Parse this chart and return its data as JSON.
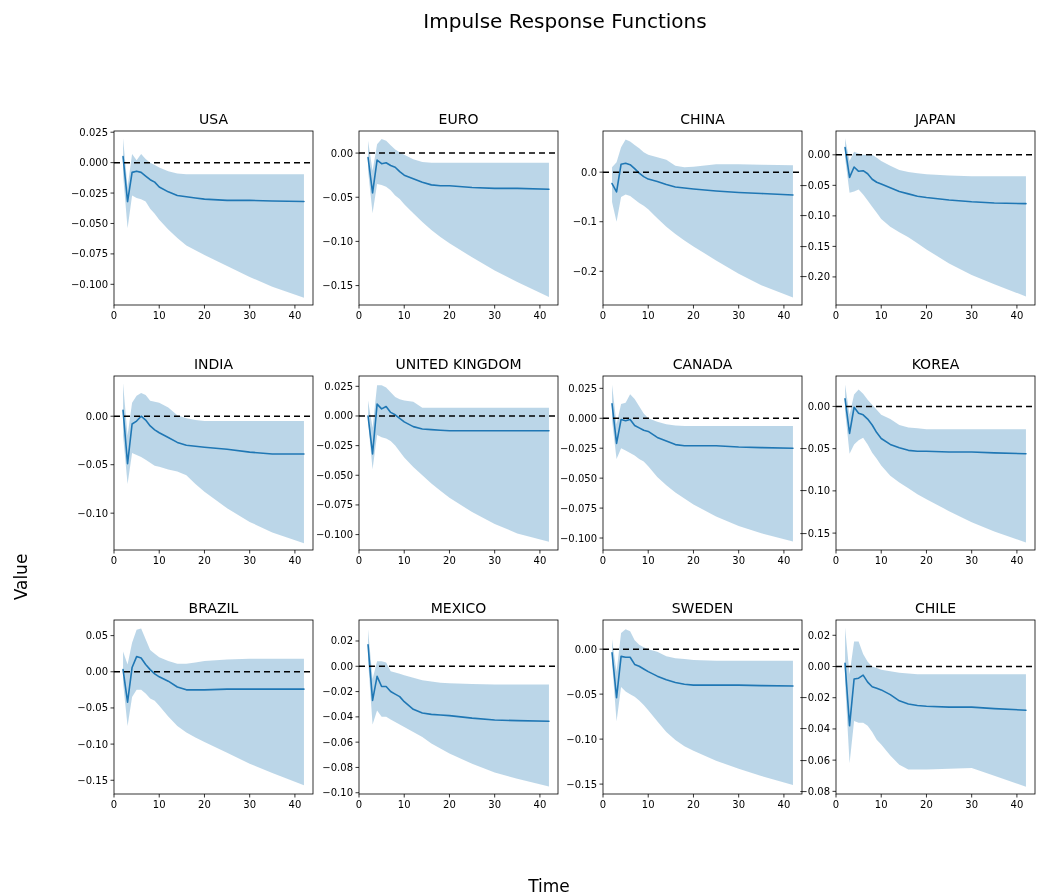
{
  "chart_data": [
    {
      "type": "line",
      "title": "USA",
      "annotations": [
        "Impulse Response Functions"
      ],
      "x": [
        2,
        3,
        4,
        5,
        6,
        7,
        8,
        9,
        10,
        12,
        14,
        16,
        18,
        20,
        25,
        30,
        35,
        42
      ],
      "xlim": [
        0,
        44
      ],
      "xticks": [
        0,
        10,
        20,
        30,
        40
      ],
      "ylim": [
        -0.117,
        0.026
      ],
      "yticks": [
        {
          "value": -0.1,
          "label": "−0.100"
        },
        {
          "value": -0.075,
          "label": "−0.075"
        },
        {
          "value": -0.05,
          "label": "−0.050"
        },
        {
          "value": -0.025,
          "label": "−0.025"
        },
        {
          "value": 0,
          "label": "0.000"
        },
        {
          "value": 0.025,
          "label": "0.025"
        }
      ],
      "ref_lines": [
        {
          "axis": "y",
          "value": 0,
          "color": "#000000",
          "line_style": "dashed"
        }
      ],
      "series": [
        {
          "color": "#1f77b4",
          "values": [
            0.005,
            -0.032,
            -0.008,
            -0.007,
            -0.008,
            -0.011,
            -0.014,
            -0.016,
            -0.02,
            -0.024,
            -0.027,
            -0.028,
            -0.029,
            -0.03,
            -0.031,
            -0.031,
            -0.0315,
            -0.032
          ],
          "upper": [
            0.02,
            -0.02,
            0.007,
            0.002,
            0.007,
            0.003,
            0,
            -0.002,
            -0.004,
            -0.007,
            -0.009,
            -0.0095,
            -0.0095,
            -0.0095,
            -0.0095,
            -0.0095,
            -0.0095,
            -0.0095
          ],
          "lower": [
            -0.01,
            -0.054,
            -0.027,
            -0.029,
            -0.03,
            -0.032,
            -0.038,
            -0.042,
            -0.047,
            -0.055,
            -0.062,
            -0.068,
            -0.072,
            -0.076,
            -0.085,
            -0.094,
            -0.102,
            -0.111
          ]
        }
      ]
    },
    {
      "type": "line",
      "title": "EURO",
      "x": [
        2,
        3,
        4,
        5,
        6,
        7,
        8,
        9,
        10,
        12,
        14,
        16,
        18,
        20,
        25,
        30,
        35,
        42
      ],
      "xlim": [
        0,
        44
      ],
      "xticks": [
        0,
        10,
        20,
        30,
        40
      ],
      "ylim": [
        -0.172,
        0.025
      ],
      "yticks": [
        {
          "value": -0.15,
          "label": "−0.15"
        },
        {
          "value": -0.1,
          "label": "−0.10"
        },
        {
          "value": -0.05,
          "label": "−0.05"
        },
        {
          "value": 0,
          "label": "0.00"
        }
      ],
      "ref_lines": [
        {
          "axis": "y",
          "value": 0,
          "color": "#000000",
          "line_style": "dashed"
        }
      ],
      "series": [
        {
          "color": "#1f77b4",
          "values": [
            -0.005,
            -0.045,
            -0.008,
            -0.012,
            -0.011,
            -0.014,
            -0.016,
            -0.021,
            -0.025,
            -0.029,
            -0.033,
            -0.036,
            -0.037,
            -0.037,
            -0.039,
            -0.04,
            -0.04,
            -0.041
          ],
          "upper": [
            0.014,
            -0.02,
            0.01,
            0.016,
            0.014,
            0.009,
            0.004,
            0.001,
            -0.002,
            -0.007,
            -0.01,
            -0.011,
            -0.011,
            -0.011,
            -0.011,
            -0.011,
            -0.011,
            -0.011
          ],
          "lower": [
            -0.02,
            -0.068,
            -0.035,
            -0.036,
            -0.038,
            -0.042,
            -0.048,
            -0.052,
            -0.058,
            -0.068,
            -0.078,
            -0.087,
            -0.095,
            -0.102,
            -0.118,
            -0.133,
            -0.146,
            -0.163
          ]
        }
      ]
    },
    {
      "type": "line",
      "title": "CHINA",
      "x": [
        2,
        3,
        4,
        5,
        6,
        7,
        8,
        9,
        10,
        12,
        14,
        16,
        18,
        20,
        25,
        30,
        35,
        42
      ],
      "xlim": [
        0,
        44
      ],
      "xticks": [
        0,
        10,
        20,
        30,
        40
      ],
      "ylim": [
        -0.268,
        0.083
      ],
      "yticks": [
        {
          "value": -0.2,
          "label": "−0.2"
        },
        {
          "value": -0.1,
          "label": "−0.1"
        },
        {
          "value": 0,
          "label": "0.0"
        }
      ],
      "ref_lines": [
        {
          "axis": "y",
          "value": 0,
          "color": "#000000",
          "line_style": "dashed"
        }
      ],
      "series": [
        {
          "color": "#1f77b4",
          "values": [
            -0.023,
            -0.04,
            0.016,
            0.018,
            0.015,
            0.007,
            -0.002,
            -0.009,
            -0.014,
            -0.019,
            -0.025,
            -0.03,
            -0.032,
            -0.034,
            -0.038,
            -0.041,
            -0.043,
            -0.046
          ],
          "upper": [
            0.01,
            0.02,
            0.05,
            0.066,
            0.062,
            0.055,
            0.048,
            0.04,
            0.035,
            0.03,
            0.025,
            0.013,
            0.01,
            0.011,
            0.016,
            0.016,
            0.015,
            0.014
          ],
          "lower": [
            -0.06,
            -0.1,
            -0.05,
            -0.045,
            -0.048,
            -0.055,
            -0.062,
            -0.068,
            -0.075,
            -0.093,
            -0.11,
            -0.125,
            -0.138,
            -0.15,
            -0.178,
            -0.205,
            -0.228,
            -0.253
          ]
        }
      ]
    },
    {
      "type": "line",
      "title": "JAPAN",
      "x": [
        2,
        3,
        4,
        5,
        6,
        7,
        8,
        9,
        10,
        12,
        14,
        16,
        18,
        20,
        25,
        30,
        35,
        42
      ],
      "xlim": [
        0,
        44
      ],
      "xticks": [
        0,
        10,
        20,
        30,
        40
      ],
      "ylim": [
        -0.246,
        0.039
      ],
      "yticks": [
        {
          "value": -0.2,
          "label": "−0.20"
        },
        {
          "value": -0.15,
          "label": "−0.15"
        },
        {
          "value": -0.1,
          "label": "−0.10"
        },
        {
          "value": -0.05,
          "label": "−0.05"
        },
        {
          "value": 0,
          "label": "0.00"
        }
      ],
      "ref_lines": [
        {
          "axis": "y",
          "value": 0,
          "color": "#000000",
          "line_style": "dashed"
        }
      ],
      "series": [
        {
          "color": "#1f77b4",
          "values": [
            0.012,
            -0.037,
            -0.02,
            -0.027,
            -0.026,
            -0.031,
            -0.04,
            -0.045,
            -0.048,
            -0.054,
            -0.06,
            -0.064,
            -0.068,
            -0.07,
            -0.074,
            -0.077,
            -0.079,
            -0.08
          ],
          "upper": [
            0.027,
            -0.01,
            0.005,
            0.002,
            0,
            0,
            0,
            -0.005,
            -0.01,
            -0.018,
            -0.025,
            -0.028,
            -0.03,
            -0.032,
            -0.034,
            -0.035,
            -0.035,
            -0.035
          ],
          "lower": [
            -0.005,
            -0.062,
            -0.06,
            -0.057,
            -0.065,
            -0.075,
            -0.085,
            -0.095,
            -0.105,
            -0.118,
            -0.127,
            -0.135,
            -0.145,
            -0.155,
            -0.178,
            -0.197,
            -0.212,
            -0.232
          ]
        }
      ]
    },
    {
      "type": "line",
      "title": "INDIA",
      "ylabel": "Value",
      "x": [
        2,
        3,
        4,
        5,
        6,
        7,
        8,
        9,
        10,
        12,
        14,
        16,
        18,
        20,
        25,
        30,
        35,
        42
      ],
      "xlim": [
        0,
        44
      ],
      "xticks": [
        0,
        10,
        20,
        30,
        40
      ],
      "ylim": [
        -0.138,
        0.0415
      ],
      "yticks": [
        {
          "value": -0.1,
          "label": "−0.10"
        },
        {
          "value": -0.05,
          "label": "−0.05"
        },
        {
          "value": 0,
          "label": "0.00"
        }
      ],
      "ref_lines": [
        {
          "axis": "y",
          "value": 0,
          "color": "#000000",
          "line_style": "dashed"
        }
      ],
      "series": [
        {
          "color": "#1f77b4",
          "values": [
            0.006,
            -0.049,
            -0.008,
            -0.005,
            0,
            -0.004,
            -0.01,
            -0.014,
            -0.017,
            -0.022,
            -0.027,
            -0.03,
            -0.031,
            -0.032,
            -0.034,
            -0.037,
            -0.039,
            -0.039
          ],
          "upper": [
            0.034,
            -0.02,
            0.014,
            0.021,
            0.024,
            0.022,
            0.016,
            0.015,
            0.014,
            0.009,
            0.001,
            -0.002,
            -0.004,
            -0.005,
            -0.005,
            -0.005,
            -0.005,
            -0.005
          ],
          "lower": [
            -0.02,
            -0.07,
            -0.038,
            -0.04,
            -0.042,
            -0.045,
            -0.048,
            -0.051,
            -0.052,
            -0.055,
            -0.057,
            -0.061,
            -0.07,
            -0.078,
            -0.095,
            -0.109,
            -0.12,
            -0.131
          ]
        }
      ]
    },
    {
      "type": "line",
      "title": "UNITED KINGDOM",
      "x": [
        2,
        3,
        4,
        5,
        6,
        7,
        8,
        9,
        10,
        12,
        14,
        16,
        18,
        20,
        25,
        30,
        35,
        42
      ],
      "xlim": [
        0,
        44
      ],
      "xticks": [
        0,
        10,
        20,
        30,
        40
      ],
      "ylim": [
        -0.113,
        0.0337
      ],
      "yticks": [
        {
          "value": -0.1,
          "label": "−0.100"
        },
        {
          "value": -0.075,
          "label": "−0.075"
        },
        {
          "value": -0.05,
          "label": "−0.050"
        },
        {
          "value": -0.025,
          "label": "−0.025"
        },
        {
          "value": 0,
          "label": "0.000"
        },
        {
          "value": 0.025,
          "label": "0.025"
        }
      ],
      "ref_lines": [
        {
          "axis": "y",
          "value": 0,
          "color": "#000000",
          "line_style": "dashed"
        }
      ],
      "series": [
        {
          "color": "#1f77b4",
          "values": [
            0,
            -0.032,
            0.01,
            0.006,
            0.008,
            0.003,
            0.001,
            -0.002,
            -0.005,
            -0.009,
            -0.011,
            -0.0115,
            -0.012,
            -0.0125,
            -0.0125,
            -0.0125,
            -0.0125,
            -0.0125
          ],
          "upper": [
            0.013,
            -0.01,
            0.026,
            0.026,
            0.024,
            0.02,
            0.016,
            0.014,
            0.013,
            0.012,
            0.007,
            0.007,
            0.007,
            0.007,
            0.007,
            0.007,
            0.007,
            0.007
          ],
          "lower": [
            -0.005,
            -0.045,
            -0.016,
            -0.018,
            -0.019,
            -0.021,
            -0.025,
            -0.03,
            -0.035,
            -0.043,
            -0.05,
            -0.057,
            -0.063,
            -0.069,
            -0.081,
            -0.091,
            -0.099,
            -0.106
          ]
        }
      ]
    },
    {
      "type": "line",
      "title": "CANADA",
      "x": [
        2,
        3,
        4,
        5,
        6,
        7,
        8,
        9,
        10,
        12,
        14,
        16,
        18,
        20,
        25,
        30,
        35,
        42
      ],
      "xlim": [
        0,
        44
      ],
      "xticks": [
        0,
        10,
        20,
        30,
        40
      ],
      "ylim": [
        -0.11,
        0.0353
      ],
      "yticks": [
        {
          "value": -0.1,
          "label": "−0.100"
        },
        {
          "value": -0.075,
          "label": "−0.075"
        },
        {
          "value": -0.05,
          "label": "−0.050"
        },
        {
          "value": -0.025,
          "label": "−0.025"
        },
        {
          "value": 0,
          "label": "0.000"
        },
        {
          "value": 0.025,
          "label": "0.025"
        }
      ],
      "ref_lines": [
        {
          "axis": "y",
          "value": 0,
          "color": "#000000",
          "line_style": "dashed"
        }
      ],
      "series": [
        {
          "color": "#1f77b4",
          "values": [
            0.012,
            -0.021,
            -0.001,
            -0.002,
            -0.001,
            -0.006,
            -0.008,
            -0.01,
            -0.011,
            -0.016,
            -0.019,
            -0.022,
            -0.023,
            -0.023,
            -0.023,
            -0.024,
            -0.0245,
            -0.025
          ],
          "upper": [
            0.028,
            -0.005,
            0.012,
            0.013,
            0.02,
            0.016,
            0.01,
            0.004,
            0,
            -0.003,
            -0.005,
            -0.006,
            -0.0065,
            -0.0065,
            -0.0065,
            -0.0065,
            -0.0065,
            -0.0065
          ],
          "lower": [
            -0.002,
            -0.034,
            -0.025,
            -0.027,
            -0.029,
            -0.031,
            -0.034,
            -0.036,
            -0.04,
            -0.049,
            -0.056,
            -0.062,
            -0.067,
            -0.072,
            -0.082,
            -0.09,
            -0.096,
            -0.103
          ]
        }
      ]
    },
    {
      "type": "line",
      "title": "KOREA",
      "x": [
        2,
        3,
        4,
        5,
        6,
        7,
        8,
        9,
        10,
        12,
        14,
        16,
        18,
        20,
        25,
        30,
        35,
        42
      ],
      "xlim": [
        0,
        44
      ],
      "xticks": [
        0,
        10,
        20,
        30,
        40
      ],
      "ylim": [
        -0.17,
        0.036
      ],
      "yticks": [
        {
          "value": -0.15,
          "label": "−0.15"
        },
        {
          "value": -0.1,
          "label": "−0.10"
        },
        {
          "value": -0.05,
          "label": "−0.05"
        },
        {
          "value": 0,
          "label": "0.00"
        }
      ],
      "ref_lines": [
        {
          "axis": "y",
          "value": 0,
          "color": "#000000",
          "line_style": "dashed"
        }
      ],
      "series": [
        {
          "color": "#1f77b4",
          "values": [
            0.009,
            -0.032,
            -0.001,
            -0.008,
            -0.01,
            -0.015,
            -0.022,
            -0.031,
            -0.038,
            -0.045,
            -0.049,
            -0.052,
            -0.053,
            -0.053,
            -0.054,
            -0.054,
            -0.055,
            -0.056
          ],
          "upper": [
            0.026,
            -0.01,
            0.014,
            0.02,
            0.015,
            0.008,
            0.002,
            -0.004,
            -0.01,
            -0.015,
            -0.022,
            -0.025,
            -0.026,
            -0.027,
            -0.027,
            -0.027,
            -0.027,
            -0.027
          ],
          "lower": [
            -0.005,
            -0.056,
            -0.045,
            -0.04,
            -0.037,
            -0.045,
            -0.055,
            -0.062,
            -0.07,
            -0.082,
            -0.09,
            -0.097,
            -0.104,
            -0.11,
            -0.124,
            -0.137,
            -0.148,
            -0.161
          ]
        }
      ]
    },
    {
      "type": "line",
      "title": "BRAZIL",
      "x": [
        2,
        3,
        4,
        5,
        6,
        7,
        8,
        9,
        10,
        12,
        14,
        16,
        18,
        20,
        25,
        30,
        35,
        42
      ],
      "xlim": [
        0,
        44
      ],
      "xticks": [
        0,
        10,
        20,
        30,
        40
      ],
      "ylim": [
        -0.169,
        0.0716
      ],
      "yticks": [
        {
          "value": -0.15,
          "label": "−0.15"
        },
        {
          "value": -0.1,
          "label": "−0.10"
        },
        {
          "value": -0.05,
          "label": "−0.05"
        },
        {
          "value": 0,
          "label": "0.00"
        },
        {
          "value": 0.05,
          "label": "0.05"
        }
      ],
      "ref_lines": [
        {
          "axis": "y",
          "value": 0,
          "color": "#000000",
          "line_style": "dashed"
        }
      ],
      "series": [
        {
          "color": "#1f77b4",
          "values": [
            0.003,
            -0.042,
            0.006,
            0.021,
            0.019,
            0.01,
            0.003,
            -0.003,
            -0.007,
            -0.013,
            -0.021,
            -0.025,
            -0.025,
            -0.025,
            -0.024,
            -0.024,
            -0.024,
            -0.024
          ],
          "upper": [
            0.028,
            0.01,
            0.04,
            0.058,
            0.06,
            0.045,
            0.03,
            0.025,
            0.02,
            0.015,
            0.011,
            0.011,
            0.013,
            0.015,
            0.017,
            0.018,
            0.018,
            0.018
          ],
          "lower": [
            -0.015,
            -0.075,
            -0.035,
            -0.025,
            -0.025,
            -0.03,
            -0.037,
            -0.04,
            -0.047,
            -0.062,
            -0.075,
            -0.084,
            -0.091,
            -0.097,
            -0.112,
            -0.127,
            -0.14,
            -0.157
          ]
        }
      ]
    },
    {
      "type": "line",
      "title": "MEXICO",
      "xlabel": "Time",
      "x": [
        2,
        3,
        4,
        5,
        6,
        7,
        8,
        9,
        10,
        12,
        14,
        16,
        18,
        20,
        25,
        30,
        35,
        42
      ],
      "xlim": [
        0,
        44
      ],
      "xticks": [
        0,
        10,
        20,
        30,
        40
      ],
      "ylim": [
        -0.101,
        0.0366
      ],
      "yticks": [
        {
          "value": -0.1,
          "label": "−0.10"
        },
        {
          "value": -0.08,
          "label": "−0.08"
        },
        {
          "value": -0.06,
          "label": "−0.06"
        },
        {
          "value": -0.04,
          "label": "−0.04"
        },
        {
          "value": -0.02,
          "label": "−0.02"
        },
        {
          "value": 0,
          "label": "0.00"
        },
        {
          "value": 0.02,
          "label": "0.02"
        }
      ],
      "ref_lines": [
        {
          "axis": "y",
          "value": 0,
          "color": "#000000",
          "line_style": "dashed"
        }
      ],
      "series": [
        {
          "color": "#1f77b4",
          "values": [
            0.017,
            -0.027,
            -0.008,
            -0.016,
            -0.016,
            -0.02,
            -0.022,
            -0.024,
            -0.028,
            -0.034,
            -0.037,
            -0.038,
            -0.0385,
            -0.039,
            -0.041,
            -0.0425,
            -0.043,
            -0.0435
          ],
          "upper": [
            0.029,
            -0.01,
            0.004,
            0.004,
            0.003,
            -0.004,
            -0.005,
            -0.006,
            -0.007,
            -0.009,
            -0.011,
            -0.012,
            -0.013,
            -0.0135,
            -0.014,
            -0.0145,
            -0.0145,
            -0.0145
          ],
          "lower": [
            0.005,
            -0.046,
            -0.035,
            -0.04,
            -0.04,
            -0.042,
            -0.044,
            -0.046,
            -0.048,
            -0.052,
            -0.056,
            -0.061,
            -0.065,
            -0.069,
            -0.077,
            -0.084,
            -0.089,
            -0.095
          ]
        }
      ]
    },
    {
      "type": "line",
      "title": "SWEDEN",
      "x": [
        2,
        3,
        4,
        5,
        6,
        7,
        8,
        9,
        10,
        12,
        14,
        16,
        18,
        20,
        25,
        30,
        35,
        42
      ],
      "xlim": [
        0,
        44
      ],
      "xticks": [
        0,
        10,
        20,
        30,
        40
      ],
      "ylim": [
        -0.161,
        0.0324
      ],
      "yticks": [
        {
          "value": -0.15,
          "label": "−0.15"
        },
        {
          "value": -0.1,
          "label": "−0.10"
        },
        {
          "value": -0.05,
          "label": "−0.05"
        },
        {
          "value": 0,
          "label": "0.00"
        }
      ],
      "ref_lines": [
        {
          "axis": "y",
          "value": 0,
          "color": "#000000",
          "line_style": "dashed"
        }
      ],
      "series": [
        {
          "color": "#1f77b4",
          "values": [
            -0.004,
            -0.054,
            -0.008,
            -0.009,
            -0.009,
            -0.017,
            -0.019,
            -0.022,
            -0.025,
            -0.03,
            -0.034,
            -0.037,
            -0.039,
            -0.04,
            -0.04,
            -0.04,
            -0.0405,
            -0.041
          ],
          "upper": [
            0.011,
            -0.025,
            0.018,
            0.022,
            0.02,
            0.01,
            0.005,
            0.002,
            0,
            -0.003,
            -0.008,
            -0.01,
            -0.011,
            -0.012,
            -0.013,
            -0.013,
            -0.013,
            -0.013
          ],
          "lower": [
            -0.015,
            -0.08,
            -0.042,
            -0.047,
            -0.05,
            -0.053,
            -0.057,
            -0.062,
            -0.068,
            -0.08,
            -0.092,
            -0.101,
            -0.108,
            -0.113,
            -0.124,
            -0.133,
            -0.141,
            -0.151
          ]
        }
      ]
    },
    {
      "type": "line",
      "title": "CHILE",
      "x": [
        2,
        3,
        4,
        5,
        6,
        7,
        8,
        9,
        10,
        12,
        14,
        16,
        18,
        20,
        25,
        30,
        35,
        42
      ],
      "xlim": [
        0,
        44
      ],
      "xticks": [
        0,
        10,
        20,
        30,
        40
      ],
      "ylim": [
        -0.0817,
        0.0298
      ],
      "yticks": [
        {
          "value": -0.08,
          "label": "−0.08"
        },
        {
          "value": -0.06,
          "label": "−0.06"
        },
        {
          "value": -0.04,
          "label": "−0.04"
        },
        {
          "value": -0.02,
          "label": "−0.02"
        },
        {
          "value": 0,
          "label": "0.00"
        },
        {
          "value": 0.02,
          "label": "0.02"
        }
      ],
      "ref_lines": [
        {
          "axis": "y",
          "value": 0,
          "color": "#000000",
          "line_style": "dashed"
        }
      ],
      "series": [
        {
          "color": "#1f77b4",
          "values": [
            0.002,
            -0.038,
            -0.008,
            -0.0075,
            -0.0055,
            -0.01,
            -0.013,
            -0.014,
            -0.015,
            -0.018,
            -0.022,
            -0.024,
            -0.025,
            -0.0255,
            -0.026,
            -0.026,
            -0.027,
            -0.028
          ],
          "upper": [
            0.025,
            -0.005,
            0.016,
            0.016,
            0.008,
            0.003,
            0,
            -0.001,
            -0.002,
            -0.003,
            -0.004,
            -0.0045,
            -0.005,
            -0.005,
            -0.005,
            -0.005,
            -0.005,
            -0.005
          ],
          "lower": [
            -0.01,
            -0.062,
            -0.035,
            -0.036,
            -0.036,
            -0.038,
            -0.042,
            -0.047,
            -0.05,
            -0.057,
            -0.063,
            -0.066,
            -0.066,
            -0.066,
            -0.0655,
            -0.065,
            -0.07,
            -0.077
          ]
        }
      ]
    }
  ]
}
